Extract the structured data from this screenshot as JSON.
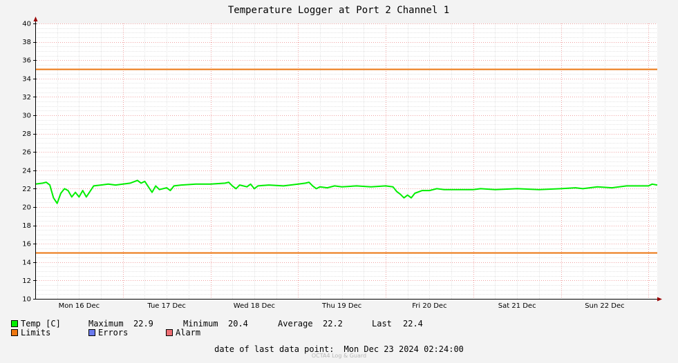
{
  "chart_data": {
    "type": "line",
    "title": "Temperature Logger at Port 2 Channel 1",
    "ylim": [
      10,
      40
    ],
    "yticks": [
      10,
      12,
      14,
      16,
      18,
      20,
      22,
      24,
      26,
      28,
      30,
      32,
      34,
      36,
      38,
      40
    ],
    "xlim": [
      "2024-12-16 00:00",
      "2024-12-23 02:24"
    ],
    "x_tick_labels": [
      "Mon 16 Dec",
      "Tue 17 Dec",
      "Wed 18 Dec",
      "Thu 19 Dec",
      "Fri 20 Dec",
      "Sat 21 Dec",
      "Sun 22 Dec"
    ],
    "grid": true,
    "series": [
      {
        "name": "Temp [C]",
        "color": "#00ee00",
        "points": [
          [
            "2024-12-16 00:00",
            22.5
          ],
          [
            "2024-12-16 02:00",
            22.6
          ],
          [
            "2024-12-16 03:00",
            22.7
          ],
          [
            "2024-12-16 04:00",
            22.4
          ],
          [
            "2024-12-16 05:00",
            21.0
          ],
          [
            "2024-12-16 06:00",
            20.4
          ],
          [
            "2024-12-16 07:00",
            21.5
          ],
          [
            "2024-12-16 08:00",
            22.0
          ],
          [
            "2024-12-16 09:00",
            21.8
          ],
          [
            "2024-12-16 10:00",
            21.1
          ],
          [
            "2024-12-16 11:00",
            21.6
          ],
          [
            "2024-12-16 12:00",
            21.1
          ],
          [
            "2024-12-16 13:00",
            21.8
          ],
          [
            "2024-12-16 14:00",
            21.1
          ],
          [
            "2024-12-16 15:00",
            21.7
          ],
          [
            "2024-12-16 16:00",
            22.3
          ],
          [
            "2024-12-16 18:00",
            22.4
          ],
          [
            "2024-12-16 20:00",
            22.5
          ],
          [
            "2024-12-16 22:00",
            22.4
          ],
          [
            "2024-12-17 00:00",
            22.5
          ],
          [
            "2024-12-17 02:00",
            22.6
          ],
          [
            "2024-12-17 04:00",
            22.9
          ],
          [
            "2024-12-17 05:00",
            22.6
          ],
          [
            "2024-12-17 06:00",
            22.8
          ],
          [
            "2024-12-17 07:00",
            22.2
          ],
          [
            "2024-12-17 08:00",
            21.6
          ],
          [
            "2024-12-17 09:00",
            22.3
          ],
          [
            "2024-12-17 10:00",
            21.9
          ],
          [
            "2024-12-17 12:00",
            22.1
          ],
          [
            "2024-12-17 13:00",
            21.8
          ],
          [
            "2024-12-17 14:00",
            22.3
          ],
          [
            "2024-12-17 16:00",
            22.4
          ],
          [
            "2024-12-17 20:00",
            22.5
          ],
          [
            "2024-12-18 00:00",
            22.5
          ],
          [
            "2024-12-18 04:00",
            22.6
          ],
          [
            "2024-12-18 05:00",
            22.7
          ],
          [
            "2024-12-18 06:00",
            22.3
          ],
          [
            "2024-12-18 07:00",
            22.0
          ],
          [
            "2024-12-18 08:00",
            22.4
          ],
          [
            "2024-12-18 10:00",
            22.2
          ],
          [
            "2024-12-18 11:00",
            22.5
          ],
          [
            "2024-12-18 12:00",
            22.0
          ],
          [
            "2024-12-18 13:00",
            22.3
          ],
          [
            "2024-12-18 16:00",
            22.4
          ],
          [
            "2024-12-18 20:00",
            22.3
          ],
          [
            "2024-12-19 00:00",
            22.5
          ],
          [
            "2024-12-19 02:00",
            22.6
          ],
          [
            "2024-12-19 03:00",
            22.7
          ],
          [
            "2024-12-19 04:00",
            22.3
          ],
          [
            "2024-12-19 05:00",
            22.0
          ],
          [
            "2024-12-19 06:00",
            22.2
          ],
          [
            "2024-12-19 08:00",
            22.1
          ],
          [
            "2024-12-19 10:00",
            22.3
          ],
          [
            "2024-12-19 12:00",
            22.2
          ],
          [
            "2024-12-19 16:00",
            22.3
          ],
          [
            "2024-12-19 20:00",
            22.2
          ],
          [
            "2024-12-20 00:00",
            22.3
          ],
          [
            "2024-12-20 02:00",
            22.2
          ],
          [
            "2024-12-20 03:00",
            21.7
          ],
          [
            "2024-12-20 04:00",
            21.4
          ],
          [
            "2024-12-20 05:00",
            21.0
          ],
          [
            "2024-12-20 06:00",
            21.3
          ],
          [
            "2024-12-20 07:00",
            21.0
          ],
          [
            "2024-12-20 08:00",
            21.5
          ],
          [
            "2024-12-20 10:00",
            21.8
          ],
          [
            "2024-12-20 12:00",
            21.8
          ],
          [
            "2024-12-20 14:00",
            22.0
          ],
          [
            "2024-12-20 16:00",
            21.9
          ],
          [
            "2024-12-20 20:00",
            21.9
          ],
          [
            "2024-12-21 00:00",
            21.9
          ],
          [
            "2024-12-21 02:00",
            22.0
          ],
          [
            "2024-12-21 06:00",
            21.9
          ],
          [
            "2024-12-21 12:00",
            22.0
          ],
          [
            "2024-12-21 18:00",
            21.9
          ],
          [
            "2024-12-22 00:00",
            22.0
          ],
          [
            "2024-12-22 04:00",
            22.1
          ],
          [
            "2024-12-22 06:00",
            22.0
          ],
          [
            "2024-12-22 10:00",
            22.2
          ],
          [
            "2024-12-22 14:00",
            22.1
          ],
          [
            "2024-12-22 18:00",
            22.3
          ],
          [
            "2024-12-23 00:00",
            22.3
          ],
          [
            "2024-12-23 01:00",
            22.5
          ],
          [
            "2024-12-23 02:24",
            22.4
          ]
        ]
      },
      {
        "name": "Limits",
        "color": "#ee7711",
        "values": [
          35,
          15
        ]
      },
      {
        "name": "Errors",
        "color": "#6a7aee",
        "values": []
      },
      {
        "name": "Alarm",
        "color": "#ee6e73",
        "values": []
      }
    ],
    "stats": {
      "maximum_label": "Maximum",
      "maximum": "22.9",
      "minimum_label": "Minimum",
      "minimum": "20.4",
      "average_label": "Average",
      "average": "22.2",
      "last_label": "Last",
      "last": "22.4"
    },
    "footer_label": "date of last data point:",
    "footer_value": "Mon Dec 23 2024 02:24:00",
    "watermark": "OCTA4 Log & Guard"
  }
}
